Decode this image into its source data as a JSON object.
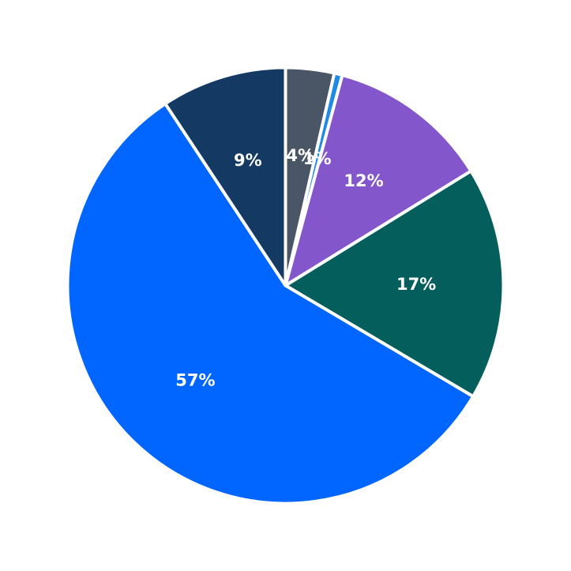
{
  "chart_data": {
    "type": "pie",
    "title": "",
    "start": "top",
    "direction": "clockwise",
    "slices": [
      {
        "label": "4%",
        "value": 3.6,
        "color": "#4a5566"
      },
      {
        "label": "1%",
        "value": 0.6,
        "color": "#1e8ae6"
      },
      {
        "label": "12%",
        "value": 12.0,
        "color": "#8456cc"
      },
      {
        "label": "17%",
        "value": 17.3,
        "color": "#035e5c"
      },
      {
        "label": "57%",
        "value": 57.2,
        "color": "#0066ff"
      },
      {
        "label": "9%",
        "value": 9.3,
        "color": "#143a63"
      }
    ]
  }
}
